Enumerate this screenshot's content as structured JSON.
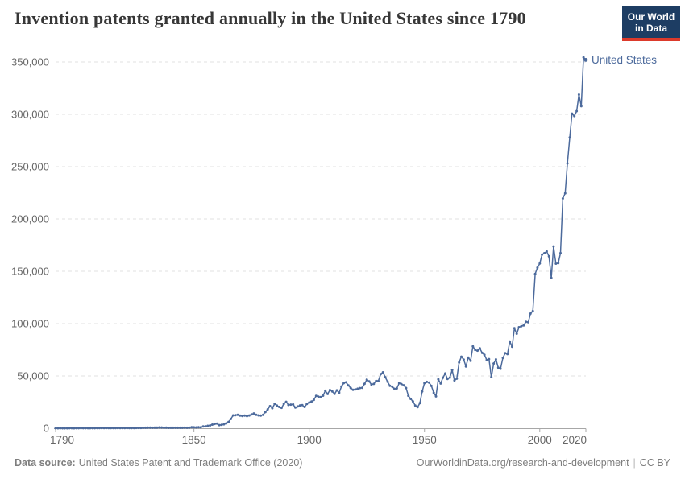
{
  "logo": {
    "line1": "Our World",
    "line2": "in Data"
  },
  "footer": {
    "datasource_label": "Data source:",
    "datasource_text": "United States Patent and Trademark Office (2020)",
    "link": "OurWorldinData.org/research-and-development",
    "divider": "|",
    "license": "CC BY"
  },
  "colors": {
    "line": "#4C6A9C",
    "series_label": "#4C6A9C",
    "grid": "#e2e2e2",
    "axis": "#a7a7a7",
    "tick_text": "#666666",
    "logo_bg": "#1d3d63",
    "logo_red": "#dc3a2b"
  },
  "chart_data": {
    "type": "line",
    "title": "Invention patents granted annually in the United States since 1790",
    "xlabel": "",
    "ylabel": "",
    "x_start": 1790,
    "x_end": 2020,
    "x_step": 1,
    "xlim": [
      1790,
      2020
    ],
    "ylim": [
      0,
      350000
    ],
    "xticks": [
      1790,
      1850,
      1900,
      1950,
      2000,
      2020
    ],
    "yticks": [
      0,
      50000,
      100000,
      150000,
      200000,
      250000,
      300000,
      350000
    ],
    "grid": "horizontal-dashed",
    "legend": "end-of-line-label",
    "series": [
      {
        "name": "United States",
        "color": "#4C6A9C",
        "values": [
          3,
          33,
          11,
          20,
          22,
          12,
          44,
          51,
          28,
          44,
          41,
          44,
          65,
          97,
          84,
          57,
          63,
          99,
          158,
          203,
          223,
          215,
          238,
          181,
          210,
          173,
          206,
          174,
          222,
          156,
          155,
          168,
          200,
          173,
          228,
          304,
          323,
          331,
          368,
          447,
          544,
          573,
          474,
          586,
          630,
          752,
          702,
          426,
          514,
          404,
          458,
          490,
          488,
          493,
          478,
          473,
          566,
          495,
          583,
          984,
          883,
          752,
          885,
          844,
          1755,
          1881,
          2302,
          2674,
          3455,
          4160,
          4357,
          3020,
          3214,
          3773,
          4630,
          6088,
          8863,
          12277,
          12526,
          12931,
          12137,
          11659,
          12180,
          11616,
          12230,
          13291,
          14169,
          12920,
          12345,
          12125,
          12903,
          15500,
          18091,
          21162,
          19118,
          23285,
          21767,
          20403,
          19551,
          23324,
          25313,
          22312,
          22647,
          22750,
          19855,
          20856,
          21822,
          22067,
          20377,
          23278,
          24644,
          25546,
          27119,
          31029,
          30258,
          29775,
          31170,
          35859,
          32735,
          36561,
          35141,
          32856,
          36198,
          33917,
          39892,
          43118,
          43892,
          40935,
          38452,
          36797,
          37060,
          37798,
          38369,
          38616,
          42574,
          46432,
          44733,
          41717,
          42357,
          45267,
          45226,
          51756,
          53458,
          48774,
          44420,
          40618,
          39782,
          37683,
          38061,
          43073,
          42238,
          41109,
          38449,
          31054,
          28053,
          25695,
          21803,
          20139,
          23963,
          35131,
          43040,
          44326,
          43616,
          40468,
          33809,
          30432,
          46817,
          42744,
          48330,
          52408,
          47170,
          48368,
          55691,
          45679,
          47375,
          62857,
          68406,
          65652,
          59104,
          67557,
          64429,
          78317,
          74810,
          74139,
          76278,
          71994,
          70226,
          65269,
          66102,
          48854,
          61819,
          65771,
          57888,
          56860,
          67200,
          71661,
          70860,
          82952,
          77924,
          95537,
          90365,
          96511,
          97444,
          98342,
          101676,
          101419,
          109645,
          111984,
          147520,
          153485,
          157496,
          166038,
          167331,
          169023,
          164290,
          143806,
          173772,
          157282,
          157772,
          167349,
          219614,
          224505,
          253155,
          277835,
          300678,
          298407,
          303049,
          318829,
          307759,
          354430,
          351993
        ]
      }
    ]
  }
}
